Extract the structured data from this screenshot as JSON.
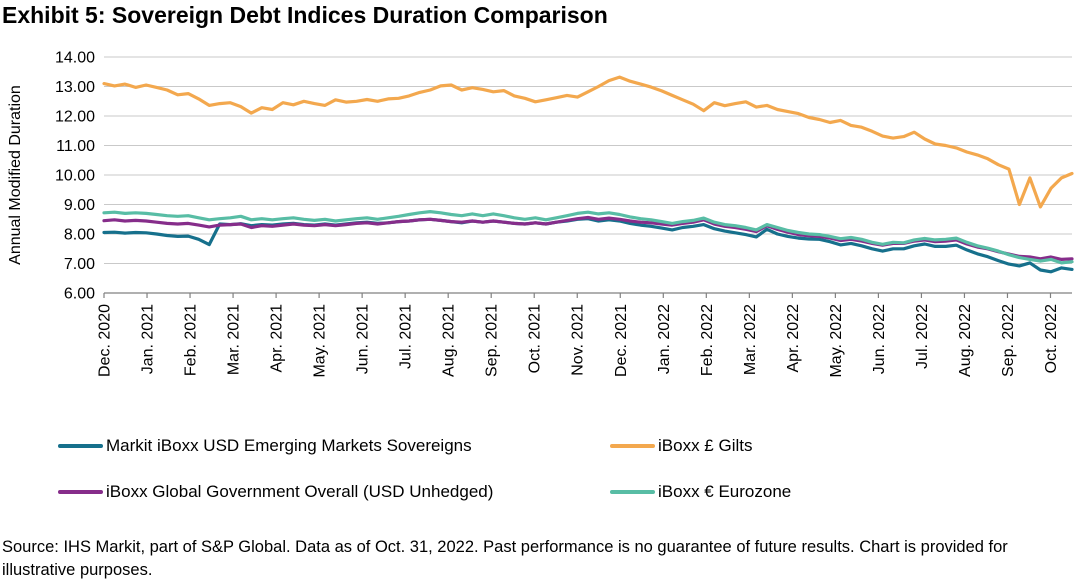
{
  "title": "Exhibit 5: Sovereign Debt Indices Duration Comparison",
  "source_note": "Source: IHS Markit, part of S&P Global. Data as of Oct. 31, 2022. Past performance is no guarantee of future results. Chart is provided for illustrative purposes.",
  "chart_data": {
    "type": "line",
    "title": "Exhibit 5: Sovereign Debt Indices Duration Comparison",
    "xlabel": "",
    "ylabel": "Annual Modified Duration",
    "ylim": [
      6,
      14
    ],
    "ytick_step": 1,
    "grid": "horizontal",
    "grid_color": "#c9c9c9",
    "axis_color": "#808080",
    "legend_position": "bottom",
    "x_tick_labels": [
      "Dec. 2020",
      "Jan. 2021",
      "Feb. 2021",
      "Mar. 2021",
      "Apr. 2021",
      "May. 2021",
      "Jun. 2021",
      "Jul. 2021",
      "Aug. 2021",
      "Sep. 2021",
      "Oct. 2021",
      "Nov. 2021",
      "Dec. 2021",
      "Jan. 2022",
      "Feb. 2022",
      "Mar. 2022",
      "Apr. 2022",
      "May. 2022",
      "Jun. 2022",
      "Jul. 2022",
      "Aug. 2022",
      "Sep. 2022",
      "Oct. 2022"
    ],
    "x_unit": "months since Dec. 1, 2020; samples every 0.25 month from 0 to 23",
    "x_step": 0.25,
    "series": [
      {
        "name": "Markit iBoxx USD Emerging Markets Sovereigns",
        "color": "#16708C",
        "values": [
          8.05,
          8.06,
          8.03,
          8.05,
          8.04,
          8.0,
          7.95,
          7.92,
          7.93,
          7.82,
          7.64,
          8.34,
          8.32,
          8.35,
          8.28,
          8.32,
          8.3,
          8.34,
          8.36,
          8.32,
          8.3,
          8.34,
          8.3,
          8.34,
          8.38,
          8.4,
          8.36,
          8.38,
          8.42,
          8.44,
          8.48,
          8.5,
          8.46,
          8.42,
          8.38,
          8.44,
          8.4,
          8.44,
          8.4,
          8.36,
          8.34,
          8.38,
          8.34,
          8.4,
          8.44,
          8.5,
          8.52,
          8.44,
          8.48,
          8.44,
          8.36,
          8.3,
          8.26,
          8.2,
          8.14,
          8.22,
          8.26,
          8.32,
          8.18,
          8.1,
          8.04,
          7.98,
          7.9,
          8.16,
          8.0,
          7.92,
          7.86,
          7.83,
          7.82,
          7.74,
          7.63,
          7.68,
          7.6,
          7.5,
          7.42,
          7.5,
          7.5,
          7.6,
          7.66,
          7.58,
          7.58,
          7.62,
          7.46,
          7.33,
          7.23,
          7.1,
          6.98,
          6.92,
          7.02,
          6.78,
          6.72,
          6.85,
          6.8
        ]
      },
      {
        "name": "iBoxx £ Gilts",
        "color": "#F3A84E",
        "values": [
          13.1,
          13.02,
          13.08,
          12.97,
          13.05,
          12.97,
          12.88,
          12.72,
          12.76,
          12.58,
          12.36,
          12.42,
          12.45,
          12.32,
          12.1,
          12.28,
          12.22,
          12.45,
          12.38,
          12.5,
          12.42,
          12.36,
          12.55,
          12.47,
          12.5,
          12.56,
          12.5,
          12.58,
          12.6,
          12.68,
          12.8,
          12.88,
          13.02,
          13.05,
          12.88,
          12.96,
          12.9,
          12.82,
          12.86,
          12.68,
          12.6,
          12.48,
          12.55,
          12.62,
          12.7,
          12.64,
          12.82,
          13.0,
          13.2,
          13.32,
          13.18,
          13.08,
          12.98,
          12.85,
          12.7,
          12.55,
          12.4,
          12.18,
          12.45,
          12.35,
          12.42,
          12.48,
          12.3,
          12.36,
          12.22,
          12.15,
          12.08,
          11.95,
          11.88,
          11.78,
          11.85,
          11.68,
          11.62,
          11.48,
          11.32,
          11.25,
          11.3,
          11.45,
          11.22,
          11.05,
          11.0,
          10.92,
          10.78,
          10.68,
          10.55,
          10.35,
          10.2,
          9.0,
          9.9,
          8.92,
          9.55,
          9.9,
          10.05
        ]
      },
      {
        "name": "iBoxx Global Government Overall (USD Unhedged)",
        "color": "#862D8A",
        "values": [
          8.45,
          8.48,
          8.44,
          8.46,
          8.44,
          8.4,
          8.36,
          8.34,
          8.36,
          8.3,
          8.24,
          8.3,
          8.32,
          8.34,
          8.22,
          8.28,
          8.26,
          8.3,
          8.34,
          8.3,
          8.28,
          8.32,
          8.28,
          8.32,
          8.36,
          8.38,
          8.34,
          8.38,
          8.42,
          8.44,
          8.48,
          8.5,
          8.46,
          8.42,
          8.4,
          8.44,
          8.4,
          8.44,
          8.4,
          8.36,
          8.34,
          8.38,
          8.34,
          8.4,
          8.46,
          8.52,
          8.56,
          8.5,
          8.54,
          8.5,
          8.44,
          8.4,
          8.38,
          8.34,
          8.3,
          8.36,
          8.4,
          8.48,
          8.34,
          8.26,
          8.22,
          8.16,
          8.08,
          8.28,
          8.16,
          8.06,
          7.98,
          7.94,
          7.92,
          7.86,
          7.78,
          7.82,
          7.76,
          7.68,
          7.62,
          7.68,
          7.68,
          7.76,
          7.8,
          7.74,
          7.76,
          7.8,
          7.66,
          7.56,
          7.5,
          7.4,
          7.32,
          7.24,
          7.22,
          7.16,
          7.22,
          7.14,
          7.16
        ]
      },
      {
        "name": "iBoxx € Eurozone",
        "color": "#58BDA5",
        "values": [
          8.72,
          8.74,
          8.7,
          8.72,
          8.7,
          8.66,
          8.62,
          8.6,
          8.62,
          8.55,
          8.48,
          8.52,
          8.55,
          8.6,
          8.48,
          8.52,
          8.48,
          8.52,
          8.55,
          8.5,
          8.46,
          8.5,
          8.44,
          8.48,
          8.52,
          8.55,
          8.5,
          8.55,
          8.6,
          8.66,
          8.72,
          8.76,
          8.72,
          8.66,
          8.62,
          8.68,
          8.62,
          8.68,
          8.62,
          8.55,
          8.5,
          8.55,
          8.48,
          8.55,
          8.62,
          8.7,
          8.74,
          8.68,
          8.72,
          8.66,
          8.58,
          8.52,
          8.48,
          8.42,
          8.36,
          8.42,
          8.46,
          8.54,
          8.4,
          8.32,
          8.28,
          8.22,
          8.14,
          8.32,
          8.22,
          8.12,
          8.05,
          8.0,
          7.98,
          7.92,
          7.84,
          7.88,
          7.82,
          7.72,
          7.65,
          7.72,
          7.7,
          7.8,
          7.85,
          7.8,
          7.82,
          7.86,
          7.72,
          7.6,
          7.52,
          7.42,
          7.3,
          7.2,
          7.14,
          7.08,
          7.14,
          7.02,
          7.06
        ]
      }
    ]
  },
  "legend_order": [
    0,
    1,
    2,
    3
  ]
}
